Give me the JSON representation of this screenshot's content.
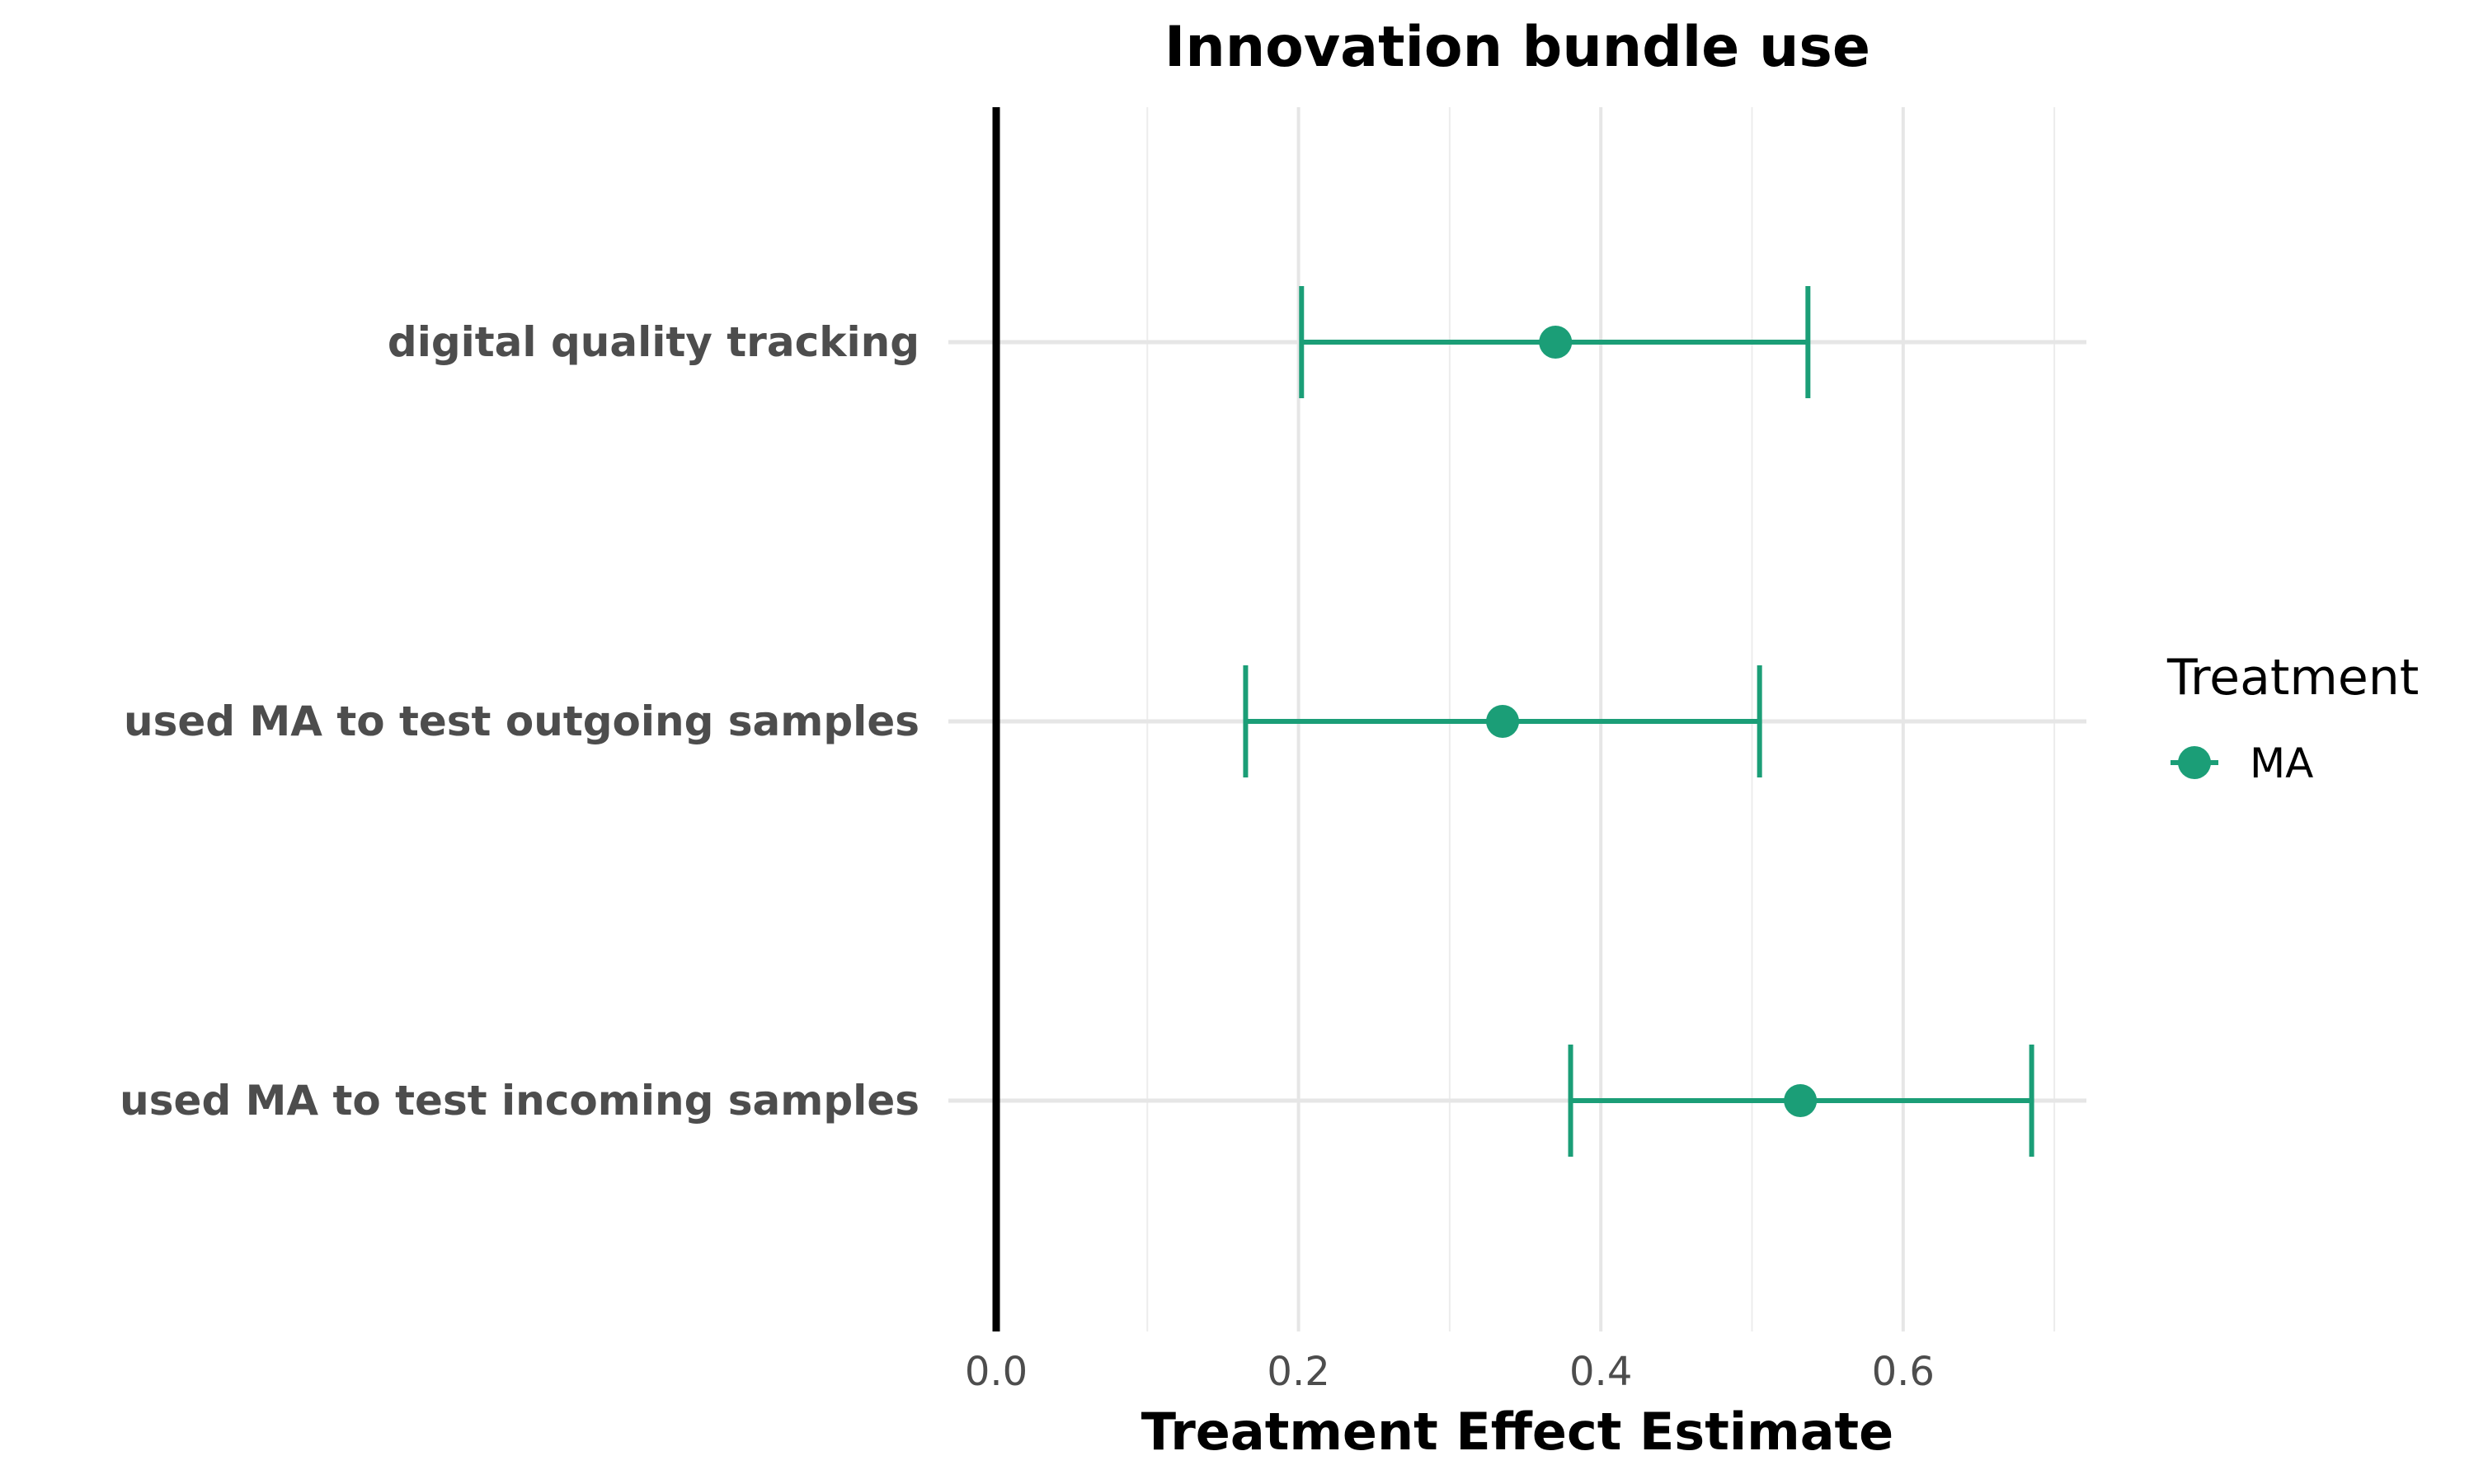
{
  "chart_data": {
    "type": "scatter",
    "subtype": "errorbar-forest",
    "title": "Innovation bundle use",
    "xlabel": "Treatment Effect Estimate",
    "ylabel": "",
    "xlim": [
      0.0,
      0.7
    ],
    "xticks": [
      0.0,
      0.2,
      0.4,
      0.6
    ],
    "xtick_labels": [
      "0.0",
      "0.2",
      "0.4",
      "0.6"
    ],
    "reference_line_x": 0.0,
    "grid": true,
    "legend": {
      "title": "Treatment",
      "position": "right",
      "entries": [
        "MA"
      ]
    },
    "categories": [
      "digital quality tracking",
      "used MA to test outgoing samples",
      "used MA to test incoming samples"
    ],
    "series": [
      {
        "name": "MA",
        "color": "#1b9e77",
        "estimates": [
          0.37,
          0.335,
          0.532
        ],
        "ci_low": [
          0.202,
          0.165,
          0.38
        ],
        "ci_high": [
          0.537,
          0.505,
          0.685
        ]
      }
    ]
  }
}
